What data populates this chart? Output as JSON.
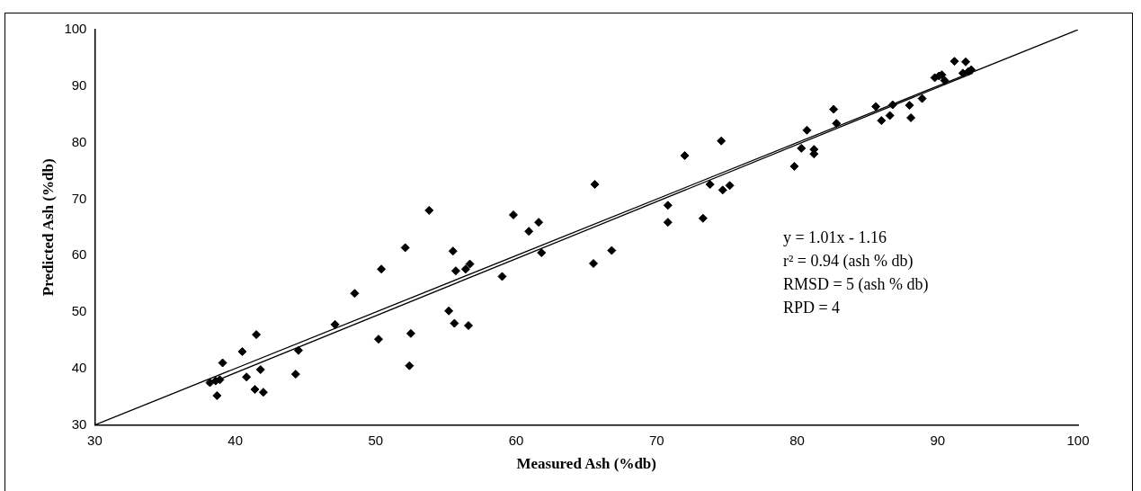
{
  "chart_data": {
    "type": "scatter",
    "xlabel": "Measured Ash (%db)",
    "ylabel": "Predicted Ash (%db)",
    "xlim": [
      30,
      100
    ],
    "xticks": [
      30,
      40,
      50,
      60,
      70,
      80,
      90,
      100
    ],
    "ylim": [
      30,
      100
    ],
    "yticks": [
      30,
      40,
      50,
      60,
      70,
      80,
      90,
      100
    ],
    "grid": false,
    "legend": false,
    "series": [
      {
        "color": "#000000",
        "marker": "diamond",
        "x": [
          38.2,
          38.6,
          38.9,
          38.7,
          39.1,
          40.5,
          40.8,
          41.4,
          41.5,
          41.8,
          42,
          44.3,
          44.5,
          47.1,
          48.5,
          50.2,
          50.4,
          52.1,
          52.4,
          52.5,
          53.8,
          55.2,
          55.5,
          55.6,
          55.7,
          56.4,
          56.7,
          56.6,
          59,
          59.8,
          60.9,
          61.6,
          61.8,
          65.5,
          65.6,
          66.8,
          70.8,
          70.8,
          72,
          73.3,
          73.8,
          74.6,
          74.7,
          75.2,
          79.8,
          80.3,
          80.7,
          81.2,
          81.2,
          82.6,
          82.8,
          85.6,
          86,
          86.6,
          86.8,
          88,
          88.1,
          88.9,
          89.8,
          90.1,
          90.3,
          90.5,
          91.2,
          91.8,
          92,
          92.2,
          92.4
        ],
        "values": [
          37.5,
          37.8,
          38,
          35.2,
          41,
          43,
          38.5,
          36.3,
          46,
          39.8,
          35.8,
          39,
          43.2,
          47.8,
          53.3,
          45.2,
          57.6,
          61.4,
          40.5,
          46.2,
          68,
          50.2,
          60.8,
          48,
          57.3,
          57.6,
          58.5,
          47.6,
          56.3,
          67.2,
          64.3,
          65.9,
          60.5,
          58.6,
          72.6,
          60.9,
          65.9,
          68.9,
          77.7,
          66.6,
          72.6,
          80.3,
          71.6,
          72.4,
          75.8,
          79,
          82.2,
          78,
          78.8,
          85.9,
          83.4,
          86.4,
          83.9,
          84.8,
          86.7,
          86.6,
          84.4,
          87.8,
          91.5,
          91.8,
          92,
          91,
          94.4,
          92.3,
          94.3,
          92.6,
          92.9
        ]
      },
      {
        "type": "line",
        "color": "#000000",
        "marker": "none",
        "x": [
          30,
          100
        ],
        "values": [
          30,
          100
        ]
      },
      {
        "type": "line",
        "color": "#000000",
        "marker": "none",
        "x": [
          38,
          92.5
        ],
        "values": [
          37.2,
          92.3
        ]
      }
    ],
    "annotations": [
      "y = 1.01x - 1.16",
      "r² = 0.94 (ash % db)",
      "RMSD = 5 (ash % db)",
      "RPD = 4"
    ]
  }
}
